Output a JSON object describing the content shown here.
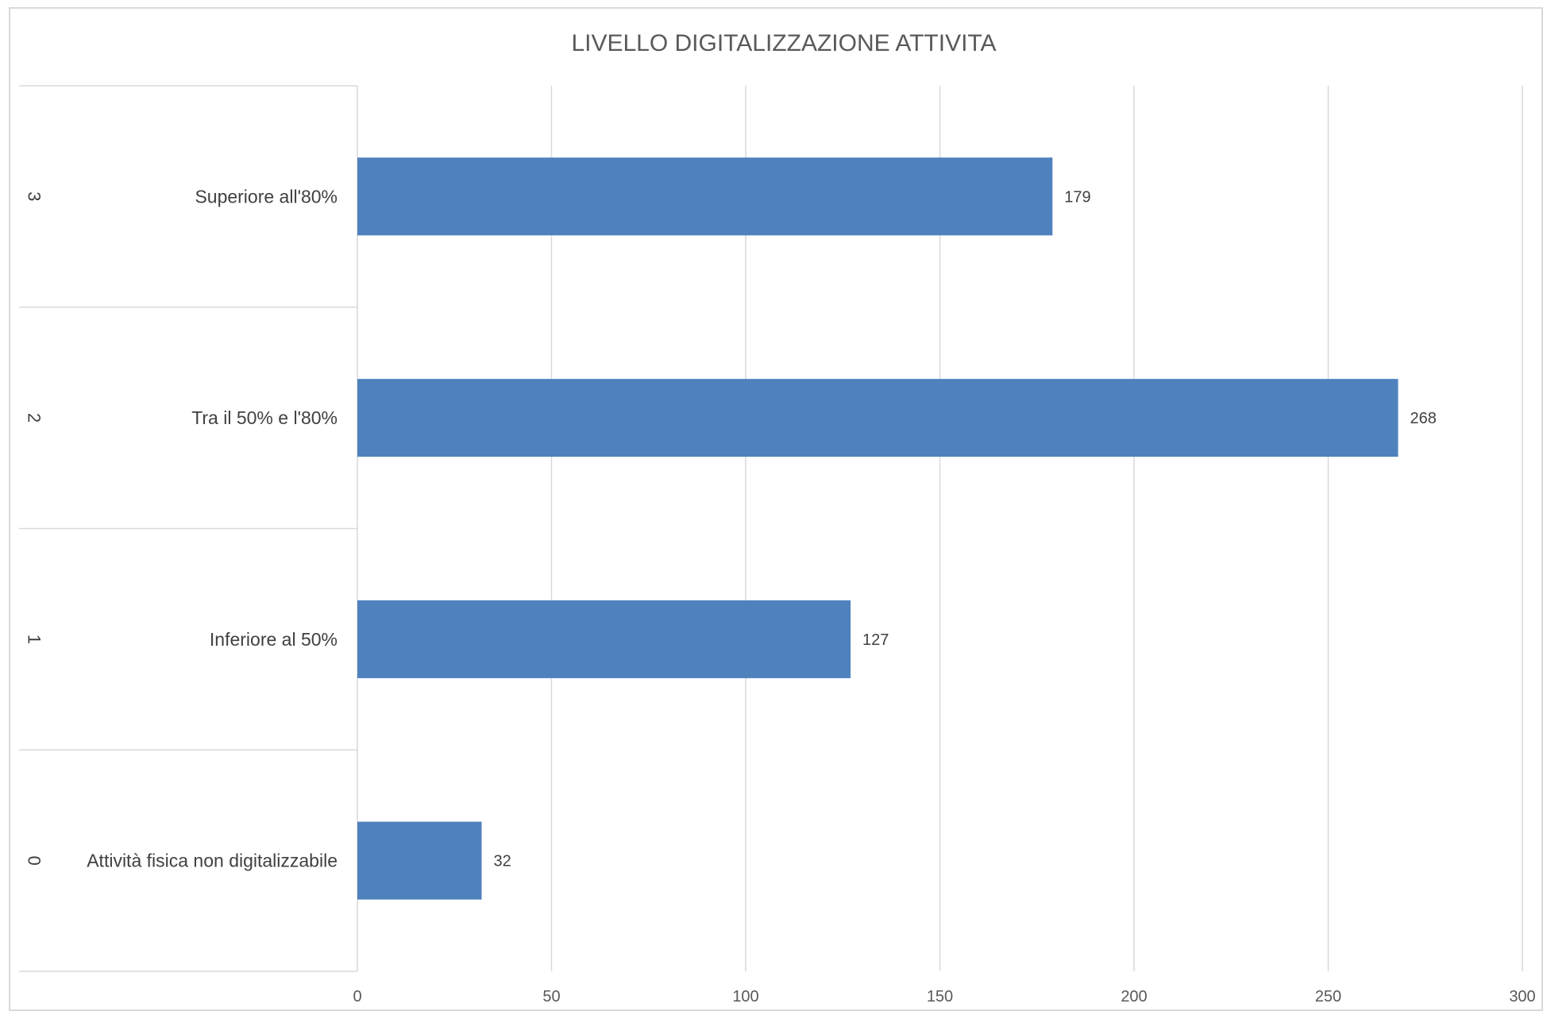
{
  "chart_data": {
    "type": "bar",
    "orientation": "horizontal",
    "title": "LIVELLO DIGITALIZZAZIONE ATTIVITA",
    "xlabel": "",
    "ylabel": "",
    "categories": [
      {
        "level": "3",
        "label": "Superiore all'80%"
      },
      {
        "level": "2",
        "label": "Tra il 50% e l'80%"
      },
      {
        "level": "1",
        "label": "Inferiore al 50%"
      },
      {
        "level": "0",
        "label": "Attività fisica non digitalizzabile"
      }
    ],
    "values": [
      179,
      268,
      127,
      32
    ],
    "data_labels": [
      "179",
      "268",
      "127",
      "32"
    ],
    "xlim": [
      0,
      300
    ],
    "xticks": [
      "0",
      "50",
      "100",
      "150",
      "200",
      "250",
      "300"
    ],
    "grid": "vertical",
    "legend": "none",
    "bar_color": "#4F81BD",
    "grid_color": "#D9D9D9",
    "border_color": "#D9D9D9"
  }
}
